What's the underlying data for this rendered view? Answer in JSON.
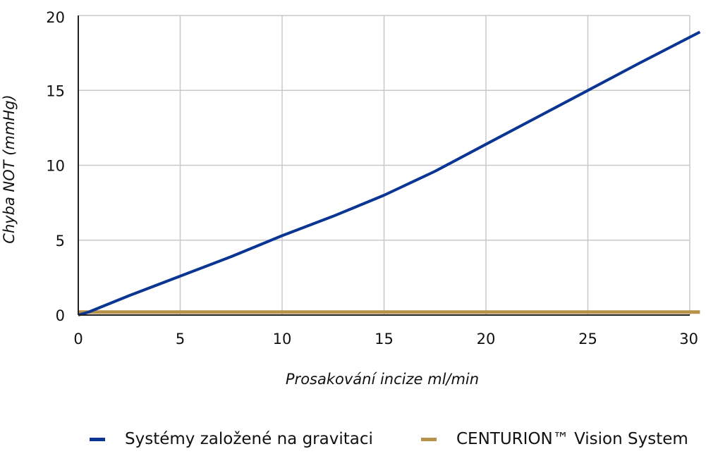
{
  "chart_data": {
    "type": "line",
    "xlabel": "Prosakování incize ml/min",
    "ylabel": "Chyba NOT (mmHg)",
    "xlim": [
      0,
      30
    ],
    "ylim": [
      0,
      20
    ],
    "xticks": [
      "0",
      "5",
      "10",
      "15",
      "20",
      "25",
      "30"
    ],
    "yticks": [
      "0",
      "5",
      "10",
      "15",
      "20"
    ],
    "grid": true,
    "legend_position": "bottom",
    "series": [
      {
        "name": "Systémy založené na gravitaci",
        "color": "#0a3593",
        "x": [
          0,
          0.5,
          2.5,
          5,
          7.5,
          10,
          12.5,
          15,
          17.5,
          20,
          22.5,
          25,
          27.5,
          30.5
        ],
        "y": [
          0,
          0.2,
          1.3,
          2.6,
          3.9,
          5.3,
          6.6,
          8.0,
          9.6,
          11.4,
          13.2,
          15.0,
          16.8,
          18.9
        ]
      },
      {
        "name": "CENTURION™ Vision System",
        "color": "#b8924a",
        "x": [
          0,
          30.5
        ],
        "y": [
          0.2,
          0.2
        ]
      }
    ]
  }
}
